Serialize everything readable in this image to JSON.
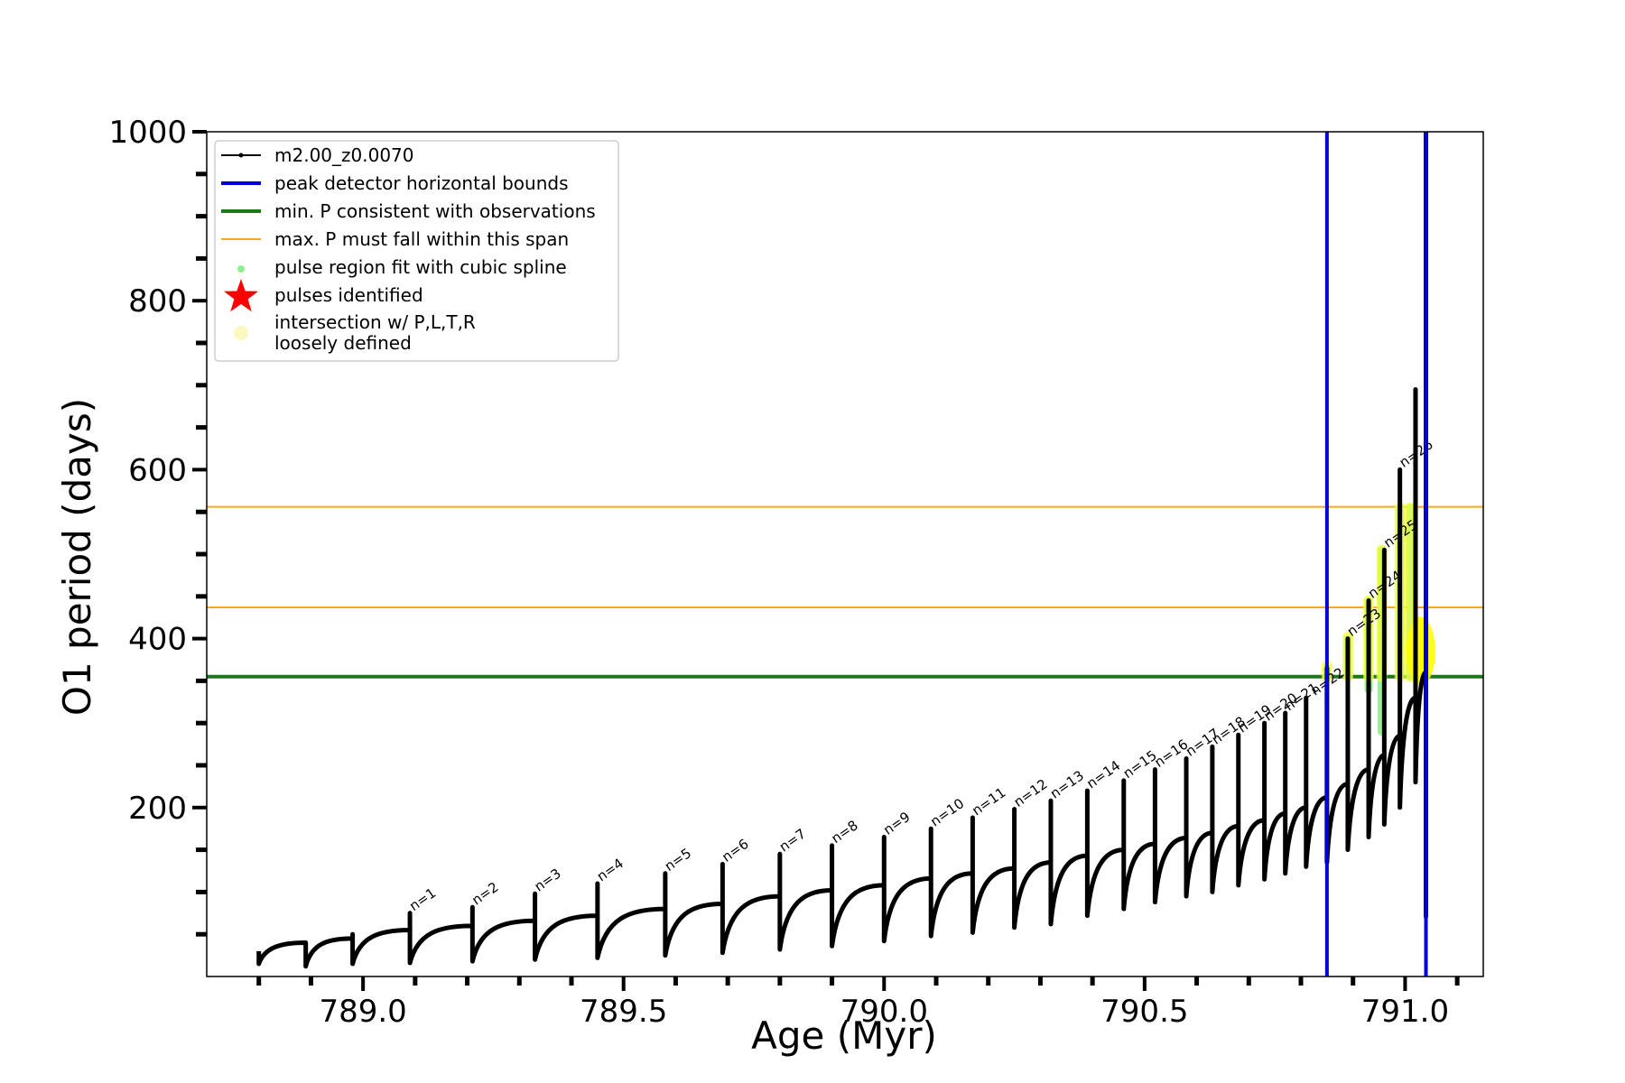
{
  "chart_data": {
    "type": "line",
    "title": "",
    "xlabel": "Age (Myr)",
    "ylabel": "O1 period (days)",
    "xlim": [
      788.7,
      791.15
    ],
    "ylim": [
      0,
      1000
    ],
    "xticks": [
      789.0,
      789.5,
      790.0,
      790.5,
      791.0
    ],
    "xtick_labels": [
      "789.0",
      "789.5",
      "790.0",
      "790.5",
      "791.0"
    ],
    "yticks": [
      200,
      400,
      600,
      800,
      1000
    ],
    "ytick_labels": [
      "200",
      "400",
      "600",
      "800",
      "1000"
    ],
    "grid": false,
    "legend_position": "upper-left",
    "legend": [
      {
        "label": "m2.00_z0.0070",
        "kind": "line-marker",
        "color": "#000000"
      },
      {
        "label": "peak detector horizontal bounds",
        "kind": "line",
        "color": "#0000dd"
      },
      {
        "label": "min. P consistent with observations",
        "kind": "line",
        "color": "#1a7a1a"
      },
      {
        "label": "max. P must fall within this span",
        "kind": "thin-line",
        "color": "#f5a623"
      },
      {
        "label": "pulse region fit with cubic spline",
        "kind": "dot",
        "color": "#90ee90"
      },
      {
        "label": "pulses identified",
        "kind": "star",
        "color": "#ff0000"
      },
      {
        "label": "intersection w/ P,L,T,R",
        "label2": "loosely defined",
        "kind": "circle",
        "color": "#fafac0"
      }
    ],
    "vertical_lines": [
      {
        "x": 790.85,
        "color": "#0000dd",
        "role": "peak detector horizontal bounds"
      },
      {
        "x": 791.04,
        "color": "#0000dd",
        "role": "peak detector horizontal bounds"
      }
    ],
    "horizontal_lines": [
      {
        "y": 355,
        "color": "#1a7a1a",
        "role": "min. P consistent with observations"
      },
      {
        "y": 437,
        "color": "#f5a623",
        "role": "max. P span lower"
      },
      {
        "y": 556,
        "color": "#f5a623",
        "role": "max. P span upper"
      }
    ],
    "series": [
      {
        "name": "m2.00_z0.0070",
        "color": "#000000",
        "start": {
          "x": 788.8,
          "y": 30
        },
        "pulses": [
          {
            "x": 788.89,
            "peak": 40,
            "min": 12,
            "pre": 40
          },
          {
            "x": 788.98,
            "peak": 50,
            "min": 15,
            "pre": 45
          },
          {
            "x": 789.09,
            "peak": 75,
            "min": 16,
            "pre": 55
          },
          {
            "x": 789.21,
            "peak": 82,
            "min": 18,
            "pre": 60
          },
          {
            "x": 789.33,
            "peak": 98,
            "min": 20,
            "pre": 66
          },
          {
            "x": 789.45,
            "peak": 110,
            "min": 22,
            "pre": 72
          },
          {
            "x": 789.58,
            "peak": 122,
            "min": 25,
            "pre": 80
          },
          {
            "x": 789.69,
            "peak": 133,
            "min": 28,
            "pre": 86
          },
          {
            "x": 789.8,
            "peak": 145,
            "min": 32,
            "pre": 95
          },
          {
            "x": 789.9,
            "peak": 155,
            "min": 36,
            "pre": 102
          },
          {
            "x": 790.0,
            "peak": 165,
            "min": 42,
            "pre": 108
          },
          {
            "x": 790.09,
            "peak": 175,
            "min": 48,
            "pre": 116
          },
          {
            "x": 790.17,
            "peak": 188,
            "min": 52,
            "pre": 122
          },
          {
            "x": 790.25,
            "peak": 198,
            "min": 58,
            "pre": 128
          },
          {
            "x": 790.32,
            "peak": 208,
            "min": 62,
            "pre": 135
          },
          {
            "x": 790.39,
            "peak": 220,
            "min": 72,
            "pre": 143
          },
          {
            "x": 790.46,
            "peak": 232,
            "min": 80,
            "pre": 150
          },
          {
            "x": 790.52,
            "peak": 245,
            "min": 88,
            "pre": 157
          },
          {
            "x": 790.58,
            "peak": 258,
            "min": 95,
            "pre": 164
          },
          {
            "x": 790.63,
            "peak": 272,
            "min": 100,
            "pre": 170
          },
          {
            "x": 790.68,
            "peak": 286,
            "min": 108,
            "pre": 178
          },
          {
            "x": 790.73,
            "peak": 300,
            "min": 115,
            "pre": 185
          },
          {
            "x": 790.77,
            "peak": 312,
            "min": 122,
            "pre": 193
          },
          {
            "x": 790.81,
            "peak": 330,
            "min": 130,
            "pre": 200
          },
          {
            "x": 790.85,
            "peak": 365,
            "min": 135,
            "pre": 212
          },
          {
            "x": 790.89,
            "peak": 400,
            "min": 150,
            "pre": 228
          },
          {
            "x": 790.93,
            "peak": 445,
            "min": 165,
            "pre": 245
          },
          {
            "x": 790.96,
            "peak": 505,
            "min": 180,
            "pre": 262
          },
          {
            "x": 790.99,
            "peak": 600,
            "min": 200,
            "pre": 285
          },
          {
            "x": 791.02,
            "peak": 695,
            "min": 230,
            "pre": 330
          },
          {
            "x": 791.04,
            "peak": 1000,
            "min": 70,
            "pre": 360
          }
        ]
      }
    ],
    "pulse_labels": [
      {
        "x": 789.09,
        "y": 75,
        "text": "n=1"
      },
      {
        "x": 789.21,
        "y": 82,
        "text": "n=2"
      },
      {
        "x": 789.33,
        "y": 98,
        "text": "n=3"
      },
      {
        "x": 789.45,
        "y": 110,
        "text": "n=4"
      },
      {
        "x": 789.58,
        "y": 122,
        "text": "n=5"
      },
      {
        "x": 789.69,
        "y": 133,
        "text": "n=6"
      },
      {
        "x": 789.8,
        "y": 145,
        "text": "n=7"
      },
      {
        "x": 789.9,
        "y": 155,
        "text": "n=8"
      },
      {
        "x": 790.0,
        "y": 165,
        "text": "n=9"
      },
      {
        "x": 790.09,
        "y": 175,
        "text": "n=10"
      },
      {
        "x": 790.17,
        "y": 188,
        "text": "n=11"
      },
      {
        "x": 790.25,
        "y": 198,
        "text": "n=12"
      },
      {
        "x": 790.32,
        "y": 208,
        "text": "n=13"
      },
      {
        "x": 790.39,
        "y": 220,
        "text": "n=14"
      },
      {
        "x": 790.46,
        "y": 232,
        "text": "n=15"
      },
      {
        "x": 790.52,
        "y": 245,
        "text": "n=16"
      },
      {
        "x": 790.58,
        "y": 258,
        "text": "n=17"
      },
      {
        "x": 790.63,
        "y": 272,
        "text": "n=18"
      },
      {
        "x": 790.68,
        "y": 286,
        "text": "n=19"
      },
      {
        "x": 790.73,
        "y": 300,
        "text": "n=20"
      },
      {
        "x": 790.77,
        "y": 312,
        "text": "n=21"
      },
      {
        "x": 790.82,
        "y": 330,
        "text": "n=22"
      },
      {
        "x": 790.89,
        "y": 400,
        "text": "n=23"
      },
      {
        "x": 790.93,
        "y": 445,
        "text": "n=24"
      },
      {
        "x": 790.96,
        "y": 505,
        "text": "n=25"
      },
      {
        "x": 790.99,
        "y": 600,
        "text": "n=26"
      }
    ],
    "spline_regions": [
      {
        "x": 790.85,
        "y0": 355,
        "y1": 365
      },
      {
        "x": 790.89,
        "y0": 355,
        "y1": 400
      },
      {
        "x": 790.93,
        "y0": 340,
        "y1": 445
      },
      {
        "x": 790.955,
        "y0": 290,
        "y1": 505
      },
      {
        "x": 790.99,
        "y0": 355,
        "y1": 555
      },
      {
        "x": 791.01,
        "y0": 355,
        "y1": 555
      }
    ],
    "intersections": [
      {
        "x": 790.85,
        "y0": 355,
        "y1": 368
      },
      {
        "x": 790.89,
        "y0": 355,
        "y1": 402
      },
      {
        "x": 790.93,
        "y0": 355,
        "y1": 445
      },
      {
        "x": 790.955,
        "y0": 355,
        "y1": 505
      },
      {
        "x": 790.99,
        "y0": 355,
        "y1": 555
      },
      {
        "x": 791.01,
        "y0": 355,
        "y1": 555
      },
      {
        "x": 791.025,
        "y0": 355,
        "y1": 420
      },
      {
        "x": 791.035,
        "y0": 355,
        "y1": 380
      }
    ]
  }
}
